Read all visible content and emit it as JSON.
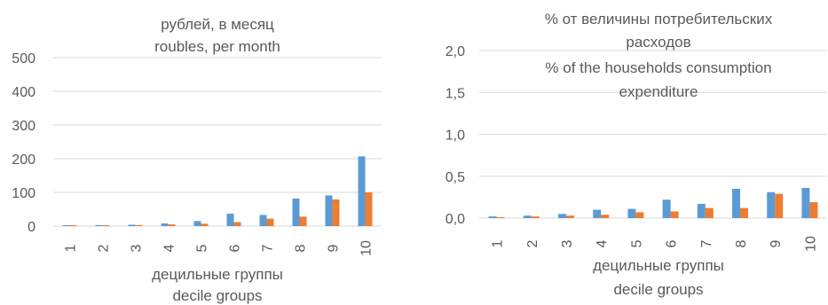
{
  "colors": {
    "series1": "#5b9bd5",
    "series2": "#ed7d31",
    "grid": "#d9d9d9",
    "text": "#595959"
  },
  "chart_data": [
    {
      "type": "bar",
      "title_lines": [
        "рублей, в месяц",
        "roubles, per month"
      ],
      "xlabel_lines": [
        "децильные группы",
        "decile groups"
      ],
      "ylabel": "",
      "categories": [
        "1",
        "2",
        "3",
        "4",
        "5",
        "6",
        "7",
        "8",
        "9",
        "10"
      ],
      "series": [
        {
          "values": [
            2,
            3,
            4,
            8,
            15,
            37,
            33,
            82,
            91,
            207
          ]
        },
        {
          "values": [
            1,
            2,
            3,
            5,
            7,
            12,
            22,
            28,
            79,
            100
          ]
        }
      ],
      "ylim": [
        0,
        500
      ],
      "yticks": [
        0,
        100,
        200,
        300,
        400,
        500
      ],
      "ytick_labels": [
        "0",
        "100",
        "200",
        "300",
        "400",
        "500"
      ],
      "grid": true,
      "legend": "none"
    },
    {
      "type": "bar",
      "title_lines": [
        "% от величины потребительских",
        "расходов",
        "% of the households consumption",
        "expenditure"
      ],
      "xlabel_lines": [
        "децильные группы",
        "decile groups"
      ],
      "ylabel": "",
      "categories": [
        "1",
        "2",
        "3",
        "4",
        "5",
        "6",
        "7",
        "8",
        "9",
        "10"
      ],
      "series": [
        {
          "values": [
            0.02,
            0.03,
            0.05,
            0.1,
            0.11,
            0.22,
            0.17,
            0.35,
            0.31,
            0.36
          ]
        },
        {
          "values": [
            0.01,
            0.02,
            0.03,
            0.04,
            0.07,
            0.08,
            0.12,
            0.12,
            0.29,
            0.19
          ]
        }
      ],
      "ylim": [
        0,
        2.0
      ],
      "yticks": [
        0,
        0.5,
        1.0,
        1.5,
        2.0
      ],
      "ytick_labels": [
        "0,0",
        "0,5",
        "1,0",
        "1,5",
        "2,0"
      ],
      "grid": true,
      "legend": "none"
    }
  ]
}
